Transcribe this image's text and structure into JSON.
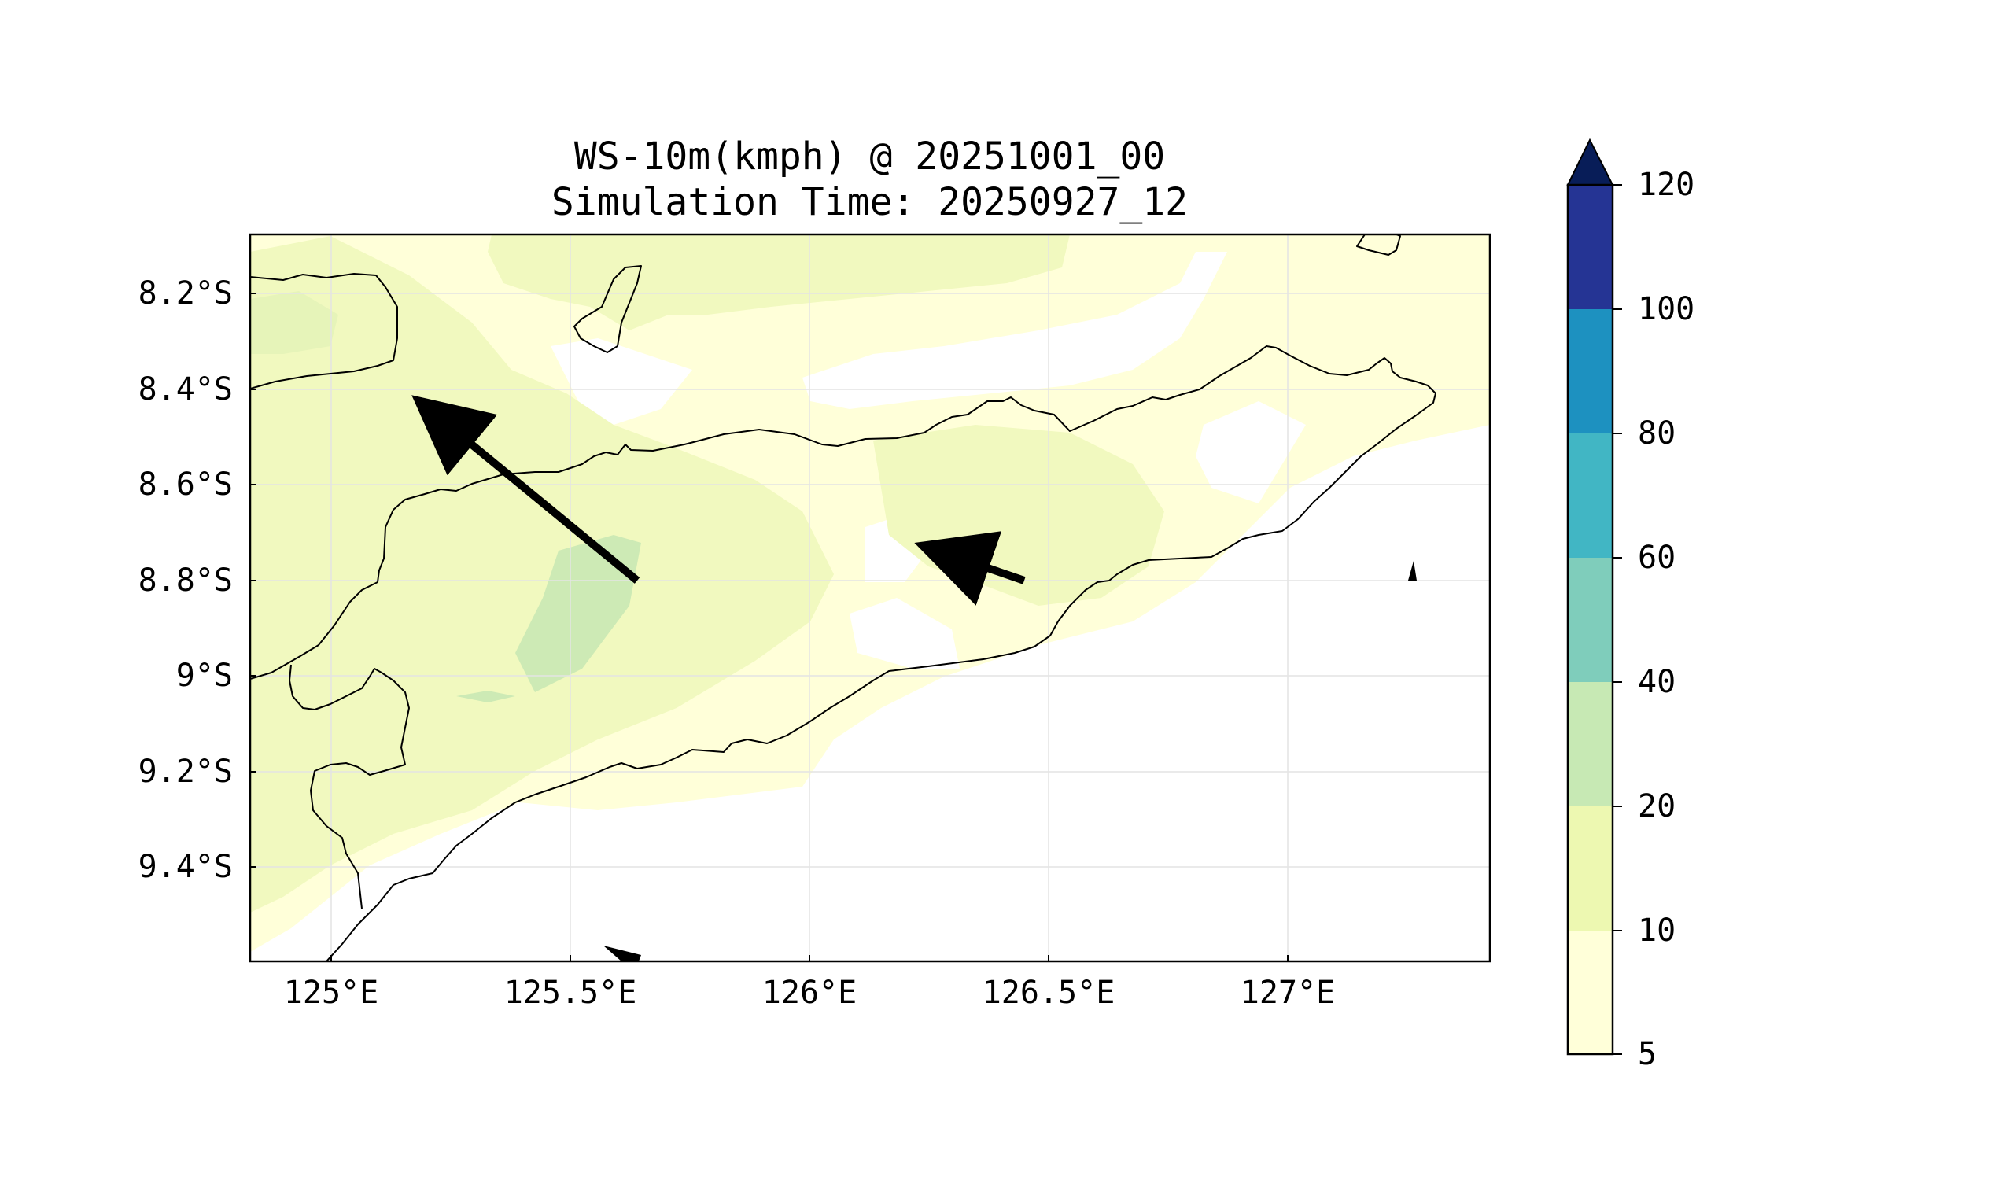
{
  "title": {
    "line1": "WS-10m(kmph) @ 20251001_00",
    "line2": "Simulation Time: 20250927_12"
  },
  "map": {
    "lat_ticks": [
      {
        "value": -8.2,
        "label": "8.2°S"
      },
      {
        "value": -8.4,
        "label": "8.4°S"
      },
      {
        "value": -8.6,
        "label": "8.6°S"
      },
      {
        "value": -8.8,
        "label": "8.8°S"
      },
      {
        "value": -9.0,
        "label": "9°S"
      },
      {
        "value": -9.2,
        "label": "9.2°S"
      },
      {
        "value": -9.4,
        "label": "9.4°S"
      }
    ],
    "lon_ticks": [
      {
        "value": 125.0,
        "label": "125°E"
      },
      {
        "value": 125.5,
        "label": "125.5°E"
      },
      {
        "value": 126.0,
        "label": "126°E"
      },
      {
        "value": 126.5,
        "label": "126.5°E"
      },
      {
        "value": 127.0,
        "label": "127°E"
      }
    ],
    "extent": {
      "lon_min": 124.83,
      "lon_max": 127.42,
      "lat_min": -9.6,
      "lat_max": -8.08
    },
    "gridlines": true,
    "coastlines": true
  },
  "colorbar": {
    "ticks": [
      "5",
      "10",
      "20",
      "40",
      "60",
      "80",
      "100",
      "120"
    ],
    "colors": [
      "#ffffd9",
      "#edf8b1",
      "#c7e9b4",
      "#7fcdbb",
      "#41b6c4",
      "#1d91c0",
      "#253494"
    ],
    "extend_color": "#081d58",
    "orientation": "vertical",
    "extend": "max"
  },
  "chart_data": {
    "type": "heatmap",
    "variable": "WS-10m(kmph)",
    "levels": [
      5,
      10,
      20,
      40,
      60,
      80,
      100,
      120
    ],
    "wind_vectors": [
      {
        "lon": 125.62,
        "lat": -8.8,
        "direction": "northwest",
        "relative_length": 1.0
      },
      {
        "lon": 126.45,
        "lat": -8.8,
        "direction": "west-northwest",
        "relative_length": 0.36
      },
      {
        "lon": 127.27,
        "lat": -8.8,
        "direction": "north",
        "relative_length": 0.08
      },
      {
        "lon": 125.62,
        "lat": -9.58,
        "direction": "west",
        "relative_length": 0.1
      }
    ]
  }
}
